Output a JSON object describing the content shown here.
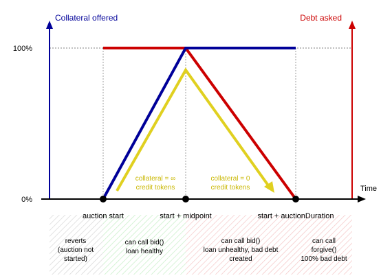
{
  "labels": {
    "collateral_axis": "Collateral offered",
    "debt_axis": "Debt asked",
    "y_top": "100%",
    "y_bottom": "0%",
    "x_axis": "Time"
  },
  "time_points": {
    "start": "auction start",
    "mid": "start + midpoint",
    "end": "start + auctionDuration"
  },
  "annotations": {
    "coll_inf_1": "collateral = ∞",
    "coll_inf_2": "credit tokens",
    "coll_zero_1": "collateral = 0",
    "coll_zero_2": "credit tokens"
  },
  "zones": [
    {
      "lines": [
        "reverts",
        "(auction not",
        "started)"
      ]
    },
    {
      "lines": [
        "can call bid()",
        "loan healthy"
      ]
    },
    {
      "lines": [
        "can call bid()",
        "loan unhealthy, bad debt",
        "created"
      ]
    },
    {
      "lines": [
        "can call",
        "forgive()",
        "100% bad debt"
      ]
    }
  ],
  "colors": {
    "collateral": "#000099",
    "debt": "#cc0000",
    "yellow": "#e0d020",
    "axis": "#000000",
    "zone_green": "#c9efc9",
    "zone_red": "#f5c9c9",
    "zone_gray": "#d9d9d9"
  }
}
